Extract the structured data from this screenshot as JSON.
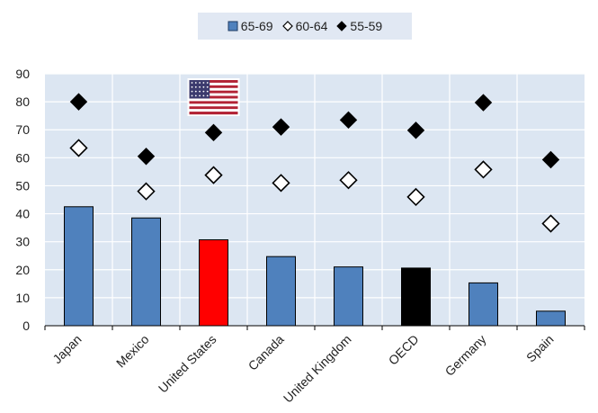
{
  "chart_data": {
    "type": "bar",
    "categories": [
      "Japan",
      "Mexico",
      "United States",
      "Canada",
      "United Kingdom",
      "OECD",
      "Germany",
      "Spain"
    ],
    "series": [
      {
        "name": "65-69",
        "kind": "bar",
        "values": [
          42.5,
          38.5,
          30.7,
          24.7,
          21.0,
          20.6,
          15.3,
          5.2
        ]
      },
      {
        "name": "60-64",
        "kind": "marker-open-diamond",
        "values": [
          63.5,
          48.0,
          53.8,
          51.0,
          52.0,
          46.0,
          55.8,
          36.5
        ]
      },
      {
        "name": "55-59",
        "kind": "marker-filled-diamond",
        "values": [
          80.0,
          60.5,
          69.0,
          71.0,
          73.5,
          69.8,
          79.7,
          59.3
        ]
      }
    ],
    "highlight": {
      "United States": "#ff0000",
      "OECD": "#000000"
    },
    "flag_icon": "us-flag-icon",
    "flag_category": "United States",
    "ylim": [
      0,
      90
    ],
    "yticks": [
      0,
      10,
      20,
      30,
      40,
      50,
      60,
      70,
      80,
      90
    ],
    "grid": true,
    "legend_position": "top-center",
    "colors": {
      "bar": "#4f81bd",
      "plot_bg": "#dce6f2",
      "legend_bg": "#e1e8f3"
    },
    "xlabel": "",
    "ylabel": "",
    "title": ""
  }
}
